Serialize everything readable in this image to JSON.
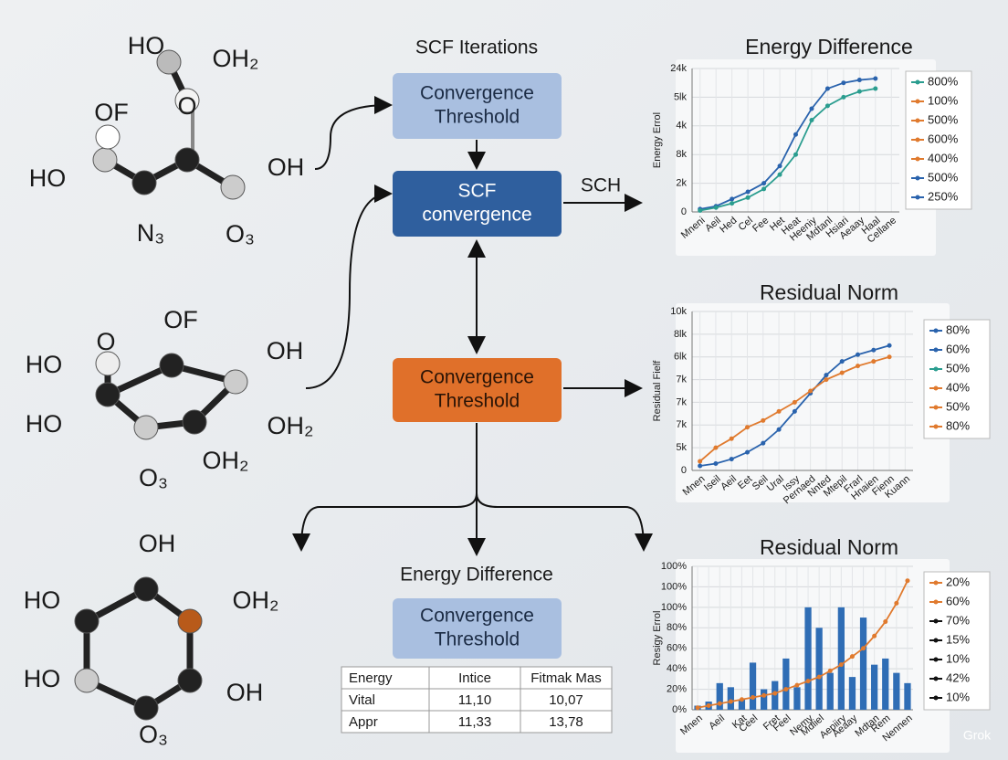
{
  "molecules": [
    {
      "labels": [
        "HO",
        "OH₂",
        "OF",
        "O",
        "HO",
        "OH",
        "N₃",
        "O₃"
      ]
    },
    {
      "labels": [
        "OF",
        "O",
        "OH",
        "HO",
        "HO",
        "OH₂",
        "OH₂",
        "O₃"
      ]
    },
    {
      "labels": [
        "OH",
        "HO",
        "OH₂",
        "HO",
        "OH",
        "O₃"
      ]
    }
  ],
  "flow": {
    "heading": "SCF Iterations",
    "boxes": [
      {
        "lines": [
          "Convergence",
          "Threshold"
        ]
      },
      {
        "lines": [
          "SCF",
          "convergence"
        ]
      },
      {
        "lines": [
          "Convergence",
          "Threshold"
        ]
      },
      {
        "lines": [
          "Convergence",
          "Threshold"
        ]
      }
    ],
    "edge_label": "SCH",
    "bottom_heading": "Energy Difference"
  },
  "charts": [
    {
      "type": "line",
      "title": "Energy Difference",
      "ylabel": "Energy Errol",
      "categories": [
        "Mneni",
        "Aeil",
        "Hed",
        "Cel",
        "Fee",
        "Het",
        "Heat",
        "Heeniy",
        "Mdtanl",
        "Hsiari",
        "Aeaay",
        "Haal",
        "Cellane"
      ],
      "series": [
        {
          "color": "#2a63ad",
          "values": [
            0.1,
            0.2,
            0.45,
            0.7,
            1.0,
            1.6,
            2.7,
            3.6,
            4.3,
            4.5,
            4.6,
            4.65,
            null
          ]
        },
        {
          "color": "#2a9d8f",
          "values": [
            0.05,
            0.15,
            0.3,
            0.5,
            0.8,
            1.3,
            2.0,
            3.2,
            3.7,
            4.0,
            4.2,
            4.3,
            null
          ]
        }
      ],
      "ylim": [
        0,
        5
      ],
      "yticks": [
        {
          "value": 0,
          "label": "0"
        },
        {
          "value": 1,
          "label": "2k"
        },
        {
          "value": 2,
          "label": "8k"
        },
        {
          "value": 3,
          "label": "4k"
        },
        {
          "value": 4,
          "label": "5lk"
        },
        {
          "value": 5,
          "label": "24k"
        }
      ],
      "grid": true,
      "legend": [
        {
          "label": "800%",
          "color": "#2a9d8f"
        },
        {
          "label": "100%",
          "color": "#e07a2e"
        },
        {
          "label": "500%",
          "color": "#e07a2e"
        },
        {
          "label": "600%",
          "color": "#e07a2e"
        },
        {
          "label": "400%",
          "color": "#e07a2e"
        },
        {
          "label": "500%",
          "color": "#2a63ad"
        },
        {
          "label": "250%",
          "color": "#2a63ad"
        }
      ]
    },
    {
      "type": "line",
      "title": "Residual Norm",
      "ylabel": "Residual Fielf",
      "categories": [
        "Mnen",
        "Iseil",
        "Aeil",
        "Eet",
        "Seil",
        "Ural",
        "Issy",
        "Pernaed",
        "Nnted",
        "Mtepil",
        "Frarl",
        "Hnaien",
        "Fienn",
        "Kuann"
      ],
      "series": [
        {
          "color": "#2a63ad",
          "values": [
            0.2,
            0.3,
            0.5,
            0.8,
            1.2,
            1.8,
            2.6,
            3.4,
            4.2,
            4.8,
            5.1,
            5.3,
            5.5,
            null
          ]
        },
        {
          "color": "#e07a2e",
          "values": [
            0.4,
            1.0,
            1.4,
            1.9,
            2.2,
            2.6,
            3.0,
            3.5,
            4.0,
            4.3,
            4.6,
            4.8,
            5.0,
            null
          ]
        }
      ],
      "ylim": [
        0,
        7
      ],
      "yticks": [
        {
          "value": 0,
          "label": "0"
        },
        {
          "value": 1,
          "label": "5k"
        },
        {
          "value": 2,
          "label": "7k"
        },
        {
          "value": 3,
          "label": "7k"
        },
        {
          "value": 4,
          "label": "7k"
        },
        {
          "value": 5,
          "label": "6lk"
        },
        {
          "value": 6,
          "label": "8lk"
        },
        {
          "value": 7,
          "label": "10k"
        }
      ],
      "grid": true,
      "legend": [
        {
          "label": "80%",
          "color": "#2a63ad"
        },
        {
          "label": "60%",
          "color": "#2a63ad"
        },
        {
          "label": "50%",
          "color": "#2a9d8f"
        },
        {
          "label": "40%",
          "color": "#e07a2e"
        },
        {
          "label": "50%",
          "color": "#e07a2e"
        },
        {
          "label": "80%",
          "color": "#e07a2e"
        }
      ]
    },
    {
      "type": "barline",
      "title": "Residual Norm",
      "ylabel": "Resigy Errol",
      "categories": [
        "Mnen",
        null,
        "Aeil",
        null,
        "Kat",
        "Ceel",
        null,
        "Fret",
        "Feel",
        null,
        "Nemy",
        "Mdiiel",
        null,
        "Aepiiry",
        "Aeaay",
        null,
        "Mdtan",
        "Rem",
        null,
        "Nennen"
      ],
      "bar_color": "#2f6db5",
      "bars": [
        0.2,
        0.4,
        1.3,
        1.1,
        0.5,
        2.3,
        1.0,
        1.4,
        2.5,
        1.1,
        5.0,
        4.0,
        1.8,
        5.0,
        1.6,
        4.5,
        2.2,
        2.5,
        1.8,
        1.3
      ],
      "line_color": "#e07a2e",
      "line": [
        0.1,
        0.2,
        0.3,
        0.4,
        0.5,
        0.6,
        0.7,
        0.8,
        1.0,
        1.2,
        1.4,
        1.6,
        1.9,
        2.2,
        2.6,
        3.0,
        3.6,
        4.3,
        5.2,
        6.3
      ],
      "ylim": [
        0,
        7
      ],
      "yticks": [
        {
          "value": 0,
          "label": "0%"
        },
        {
          "value": 1,
          "label": "20%"
        },
        {
          "value": 2,
          "label": "40%"
        },
        {
          "value": 3,
          "label": "60%"
        },
        {
          "value": 4,
          "label": "80%"
        },
        {
          "value": 5,
          "label": "100%"
        },
        {
          "value": 6,
          "label": "100%"
        },
        {
          "value": 7,
          "label": "100%"
        }
      ],
      "grid": true,
      "legend": [
        {
          "label": "20%",
          "color": "#e07a2e"
        },
        {
          "label": "60%",
          "color": "#e07a2e"
        },
        {
          "label": "70%",
          "color": "#111111"
        },
        {
          "label": "15%",
          "color": "#111111"
        },
        {
          "label": "10%",
          "color": "#111111"
        },
        {
          "label": "42%",
          "color": "#111111"
        },
        {
          "label": "10%",
          "color": "#111111"
        }
      ]
    }
  ],
  "table": {
    "header": [
      "Energy",
      "Intice",
      "Fitmak Mas"
    ],
    "rows": [
      [
        "Vital",
        "11,10",
        "10,07"
      ],
      [
        "Appr",
        "11,33",
        "13,78"
      ]
    ]
  },
  "watermark": "Grok"
}
